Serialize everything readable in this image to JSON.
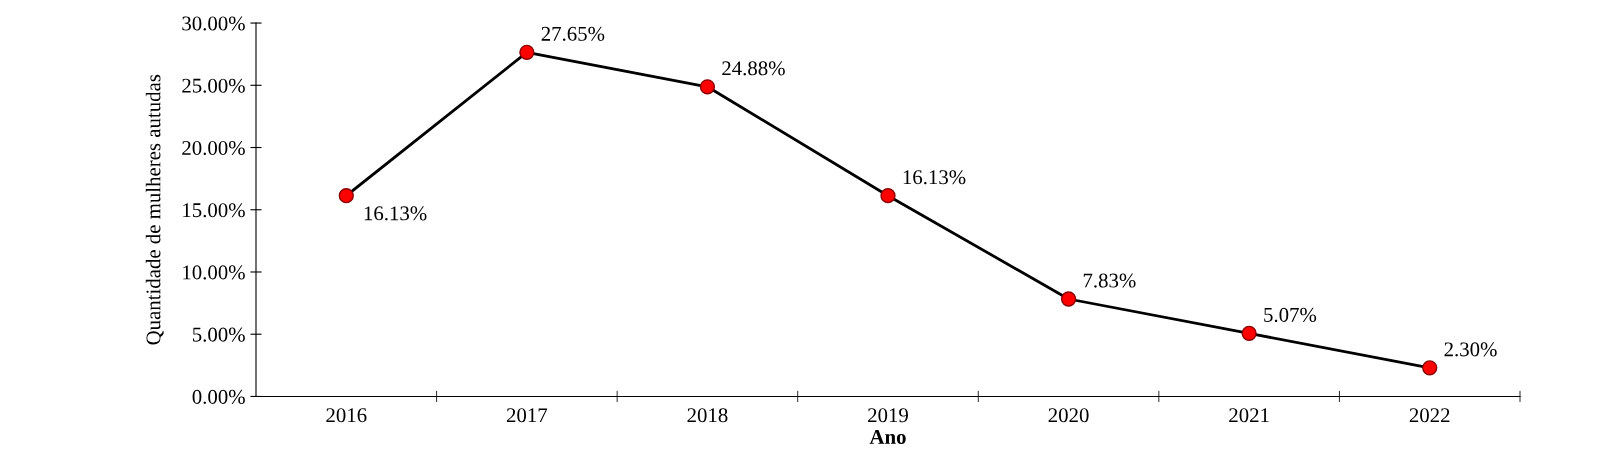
{
  "chart_data": {
    "type": "line",
    "xlabel": "Ano",
    "ylabel": "Quantidade de mulheres autudas",
    "categories": [
      "2016",
      "2017",
      "2018",
      "2019",
      "2020",
      "2021",
      "2022"
    ],
    "series": [
      {
        "color": "#000000",
        "values": [
          16.13,
          27.65,
          24.88,
          16.13,
          7.83,
          5.07,
          2.3
        ],
        "value_labels": [
          "16.13%",
          "27.65%",
          "24.88%",
          "16.13%",
          "7.83%",
          "5.07%",
          "2.30%"
        ]
      }
    ],
    "marker": "circle",
    "line_style": "solid",
    "grid": false,
    "legend": false,
    "ylim": [
      0,
      30
    ],
    "yticks": [
      {
        "value": 0,
        "label": "0.00%"
      },
      {
        "value": 5,
        "label": "5.00%"
      },
      {
        "value": 10,
        "label": "10.00%"
      },
      {
        "value": 15,
        "label": "15.00%"
      },
      {
        "value": 20,
        "label": "20.00%"
      },
      {
        "value": 25,
        "label": "25.00%"
      },
      {
        "value": 30,
        "label": "30.00%"
      }
    ]
  }
}
